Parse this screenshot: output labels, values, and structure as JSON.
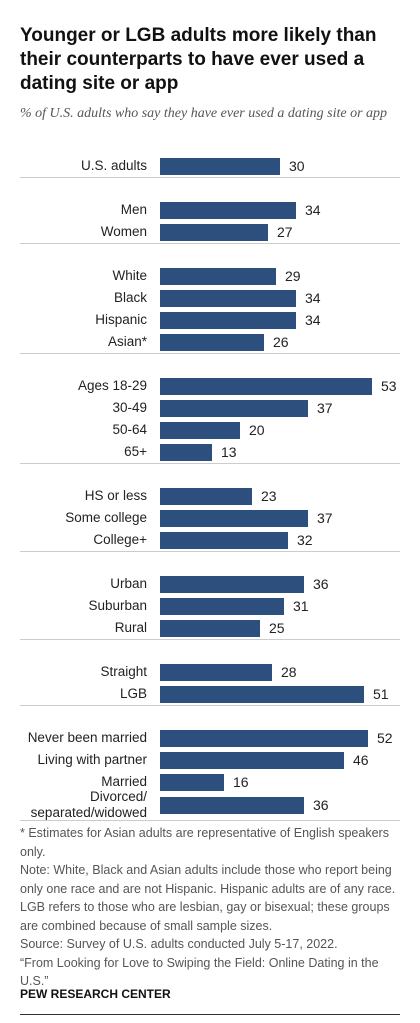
{
  "chart_data": {
    "type": "bar",
    "title": "Younger or LGB adults more likely than their counterparts to have ever used a dating site or app",
    "subtitle": "% of U.S. adults who say they have ever used a dating site or app",
    "color": "#2d4f7e",
    "xlim": [
      0,
      60
    ],
    "groups": [
      {
        "categories": [
          "U.S. adults"
        ],
        "values": [
          30
        ]
      },
      {
        "categories": [
          "Men",
          "Women"
        ],
        "values": [
          34,
          27
        ]
      },
      {
        "categories": [
          "White",
          "Black",
          "Hispanic",
          "Asian*"
        ],
        "values": [
          29,
          34,
          34,
          26
        ]
      },
      {
        "categories": [
          "Ages 18-29",
          "30-49",
          "50-64",
          "65+"
        ],
        "values": [
          53,
          37,
          20,
          13
        ]
      },
      {
        "categories": [
          "HS or less",
          "Some college",
          "College+"
        ],
        "values": [
          23,
          37,
          32
        ]
      },
      {
        "categories": [
          "Urban",
          "Suburban",
          "Rural"
        ],
        "values": [
          36,
          31,
          25
        ]
      },
      {
        "categories": [
          "Straight",
          "LGB"
        ],
        "values": [
          28,
          51
        ]
      },
      {
        "categories": [
          "Never been married",
          "Living with partner",
          "Married",
          "Divorced/\nseparated/widowed"
        ],
        "values": [
          52,
          46,
          16,
          36
        ]
      }
    ],
    "notes": [
      "* Estimates for Asian adults are representative of English speakers only.",
      "Note: White, Black and Asian adults include those who report being only one race and are not Hispanic. Hispanic adults are of any race. LGB refers to those who are lesbian, gay or bisexual; these groups are combined because of small sample sizes.",
      "Source: Survey of U.S. adults conducted July 5-17, 2022.",
      "“From Looking for Love to Swiping the Field: Online Dating in the U.S.”"
    ],
    "credit": "PEW RESEARCH CENTER"
  }
}
